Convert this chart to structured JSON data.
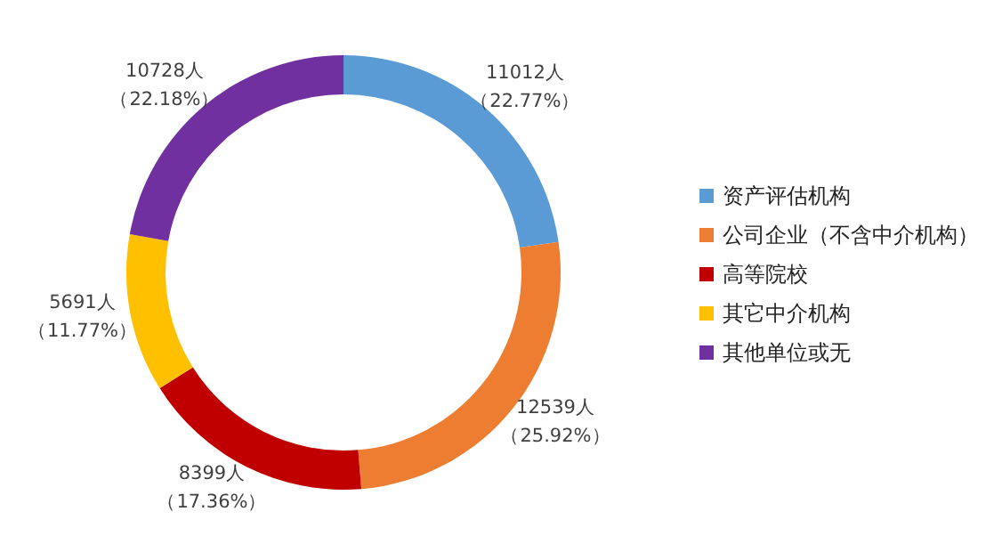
{
  "chart_data": {
    "type": "donut",
    "categories": [
      "资产评估机构",
      "公司企业（不含中介机构）",
      "高等院校",
      "其它中介机构",
      "其他单位或无"
    ],
    "values": [
      11012,
      12539,
      8399,
      5691,
      10728
    ],
    "colors": [
      "#5b9bd5",
      "#ed7d31",
      "#c00000",
      "#ffc000",
      "#7030a0"
    ],
    "value_labels": [
      "11012人（22.77%）",
      "12539人（25.92%）",
      "8399人（17.36%）",
      "5691人（11.77%）",
      "10728人（22.18%）"
    ],
    "legend": "right"
  }
}
